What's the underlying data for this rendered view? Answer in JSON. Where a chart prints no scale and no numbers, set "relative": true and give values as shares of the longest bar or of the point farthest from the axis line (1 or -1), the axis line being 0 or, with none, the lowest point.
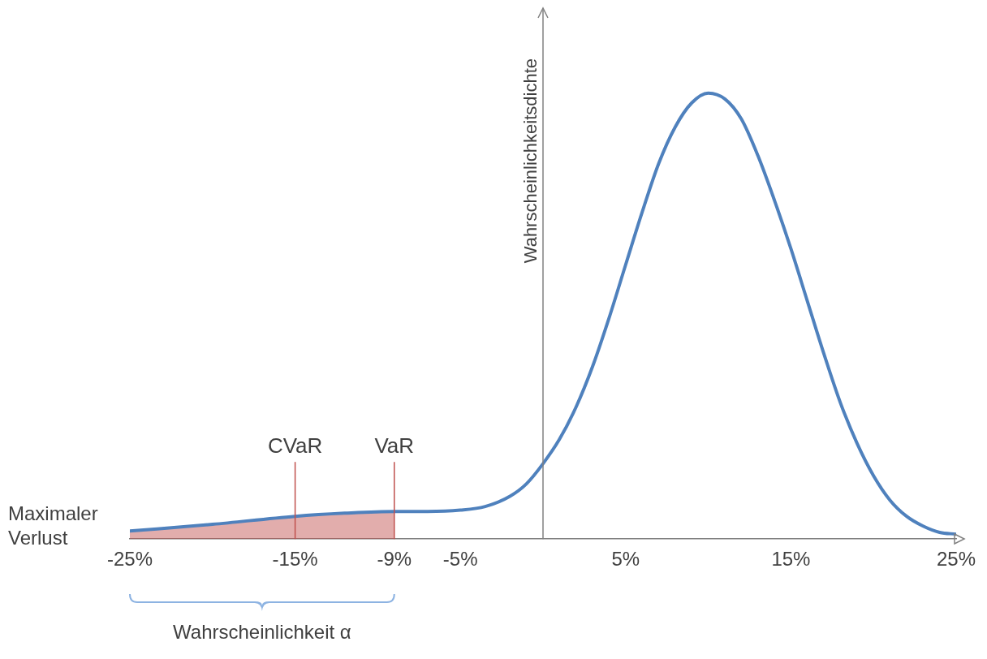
{
  "chart_data": {
    "type": "line",
    "relative": true,
    "ylabel": "Wahrscheinlichkeitsdichte",
    "x": [
      -25,
      -20,
      -15,
      -12,
      -9,
      -7,
      -5,
      -3.5,
      -2,
      -1,
      0,
      1,
      2,
      3,
      4,
      5,
      6,
      7,
      8,
      9,
      10,
      11,
      12,
      13,
      14,
      15,
      16,
      17,
      18,
      19,
      20,
      21,
      22,
      23,
      24,
      25
    ],
    "series": [
      {
        "type": "area",
        "color": "#c0504d",
        "x": [
          -25,
          -20,
          -15,
          -12,
          -9
        ],
        "values": [
          0.018,
          0.033,
          0.051,
          0.058,
          0.062
        ]
      },
      {
        "color": "#4f81bd",
        "values": [
          0.018,
          0.033,
          0.051,
          0.058,
          0.062,
          0.062,
          0.065,
          0.073,
          0.096,
          0.124,
          0.169,
          0.224,
          0.296,
          0.387,
          0.496,
          0.615,
          0.733,
          0.842,
          0.924,
          0.978,
          1,
          0.987,
          0.942,
          0.86,
          0.76,
          0.651,
          0.533,
          0.415,
          0.305,
          0.215,
          0.142,
          0.087,
          0.051,
          0.029,
          0.015,
          0.011
        ]
      }
    ],
    "xlim": [
      -25,
      25
    ],
    "xticks": [
      {
        "value": -25,
        "label": "-25%"
      },
      {
        "value": -15,
        "label": "-15%"
      },
      {
        "value": -9,
        "label": "-9%"
      },
      {
        "value": -5,
        "label": "-5%"
      },
      {
        "value": 5,
        "label": "5%"
      },
      {
        "value": 15,
        "label": "15%"
      },
      {
        "value": 25,
        "label": "25%"
      }
    ],
    "ref_lines": [
      {
        "axis": "x",
        "value": -15,
        "label": "CVaR",
        "color": "#c0504d"
      },
      {
        "axis": "x",
        "value": -9,
        "label": "VaR",
        "color": "#c0504d"
      }
    ],
    "annotations": [
      {
        "text": "Maximaler Verlust",
        "x": -25,
        "y": 0.018
      },
      "Wahrscheinlichkeit α"
    ],
    "grid": false,
    "legend": false,
    "marker": "none",
    "line_style": "solid"
  }
}
